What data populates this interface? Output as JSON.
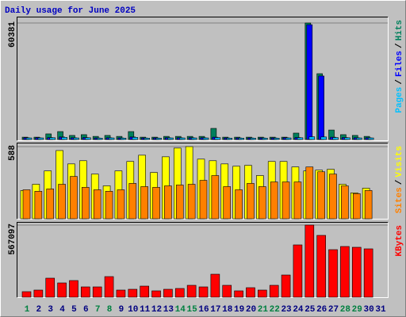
{
  "title": "Daily usage for June 2025",
  "chart_data": {
    "type": "bar",
    "categories": [
      "1",
      "2",
      "3",
      "4",
      "5",
      "6",
      "7",
      "8",
      "9",
      "10",
      "11",
      "12",
      "13",
      "14",
      "15",
      "16",
      "17",
      "18",
      "19",
      "20",
      "21",
      "22",
      "23",
      "24",
      "25",
      "26",
      "27",
      "28",
      "29",
      "30",
      "31"
    ],
    "weekend": [
      0,
      6,
      7,
      13,
      14,
      20,
      21,
      27,
      28
    ],
    "weekend_color": "#008040",
    "legend_separator": "/",
    "panels": [
      {
        "ylim": [
          0,
          60381
        ],
        "yticks": [
          60381
        ],
        "series": [
          {
            "name": "Hits",
            "color": "#00805c",
            "values": [
              1200,
              1200,
              2900,
              4100,
              2100,
              2500,
              1600,
              2100,
              1600,
              4100,
              1200,
              1200,
              1600,
              1600,
              1600,
              1600,
              5750,
              1200,
              1200,
              1200,
              1200,
              1200,
              1200,
              3300,
              60381,
              34100,
              4900,
              2500,
              2100,
              1600,
              null
            ]
          },
          {
            "name": "Files",
            "color": "#0000ff",
            "values": [
              900,
              900,
              1000,
              1300,
              900,
              1000,
              800,
              900,
              800,
              1300,
              800,
              800,
              900,
              900,
              900,
              900,
              1200,
              800,
              800,
              800,
              800,
              800,
              900,
              1000,
              59500,
              32900,
              1200,
              1000,
              900,
              900,
              null
            ]
          },
          {
            "name": "Pages",
            "color": "#00c0ff",
            "values": [
              800,
              800,
              900,
              1100,
              800,
              900,
              700,
              800,
              700,
              1100,
              700,
              700,
              800,
              800,
              800,
              800,
              1000,
              700,
              700,
              700,
              700,
              700,
              800,
              900,
              1400,
              1300,
              1000,
              900,
              800,
              800,
              null
            ]
          }
        ]
      },
      {
        "ylim": [
          0,
          588
        ],
        "yticks": [
          588
        ],
        "series": [
          {
            "name": "Visits",
            "color": "#ffff00",
            "values": [
              230,
              281,
              390,
              556,
              447,
              473,
              364,
              268,
              390,
              467,
              518,
              377,
              505,
              576,
              588,
              486,
              473,
              447,
              428,
              435,
              352,
              467,
              467,
              422,
              390,
              396,
              403,
              281,
              211,
              249,
              null
            ]
          },
          {
            "name": "Sites",
            "color": "#ff8000",
            "values": [
              236,
              224,
              243,
              281,
              345,
              256,
              236,
              224,
              236,
              288,
              262,
              256,
              268,
              275,
              281,
              313,
              352,
              262,
              236,
              288,
              262,
              300,
              300,
              300,
              422,
              383,
              364,
              268,
              205,
              230,
              null
            ]
          }
        ]
      },
      {
        "ylim": [
          0,
          567097
        ],
        "yticks": [
          567097
        ],
        "series": [
          {
            "name": "KBytes",
            "color": "#ff0000",
            "values": [
              43600,
              56100,
              149600,
              112200,
              130900,
              81000,
              81000,
              162000,
              56100,
              62300,
              87200,
              49900,
              62300,
              68600,
              93500,
              81000,
              180700,
              93500,
              49900,
              74800,
              56100,
              93500,
              174500,
              411300,
              567097,
              486100,
              373900,
              398800,
              392600,
              380200,
              null
            ]
          }
        ]
      }
    ]
  }
}
